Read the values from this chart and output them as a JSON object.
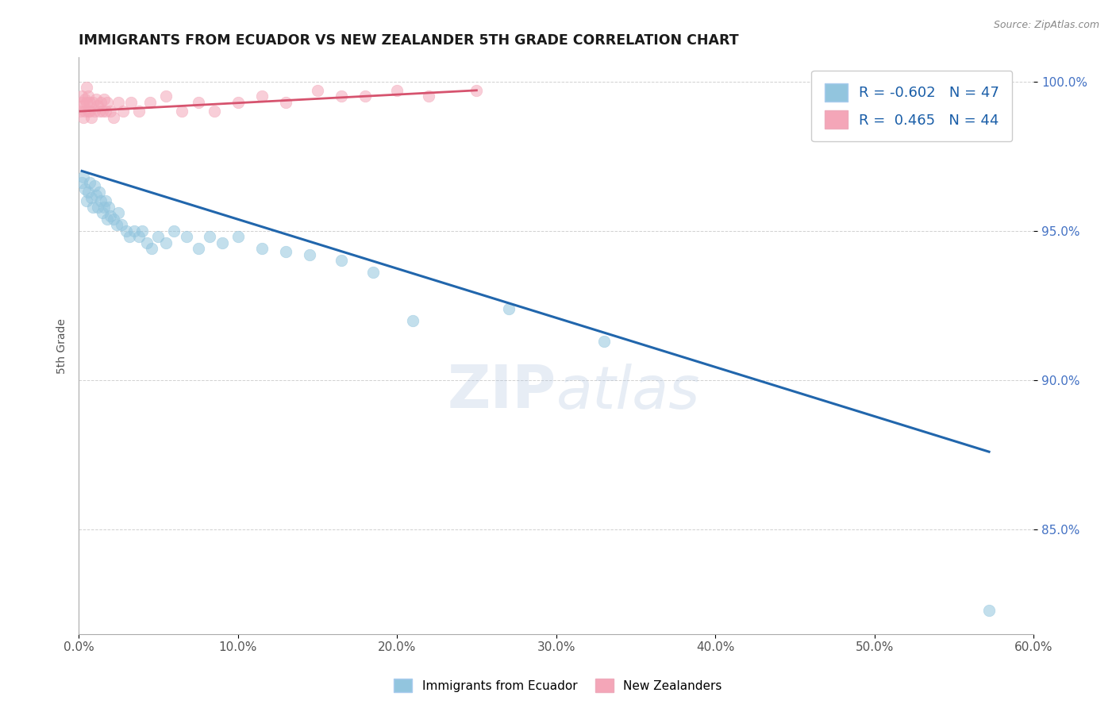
{
  "title": "IMMIGRANTS FROM ECUADOR VS NEW ZEALANDER 5TH GRADE CORRELATION CHART",
  "source": "Source: ZipAtlas.com",
  "ylabel": "5th Grade",
  "xlabel_legend1": "Immigrants from Ecuador",
  "xlabel_legend2": "New Zealanders",
  "r1": -0.602,
  "n1": 47,
  "r2": 0.465,
  "n2": 44,
  "color_blue": "#92c5de",
  "color_pink": "#f4a6b8",
  "color_blue_line": "#2166ac",
  "color_pink_line": "#d6536e",
  "xlim": [
    0.0,
    0.6
  ],
  "ylim": [
    0.815,
    1.008
  ],
  "xticks": [
    0.0,
    0.1,
    0.2,
    0.3,
    0.4,
    0.5,
    0.6
  ],
  "yticks": [
    0.85,
    0.9,
    0.95,
    1.0
  ],
  "ytick_labels": [
    "85.0%",
    "90.0%",
    "95.0%",
    "100.0%"
  ],
  "xtick_labels": [
    "0.0%",
    "10.0%",
    "20.0%",
    "30.0%",
    "40.0%",
    "50.0%",
    "60.0%"
  ],
  "blue_x": [
    0.002,
    0.003,
    0.004,
    0.005,
    0.006,
    0.007,
    0.008,
    0.009,
    0.01,
    0.011,
    0.012,
    0.013,
    0.014,
    0.015,
    0.016,
    0.017,
    0.018,
    0.019,
    0.02,
    0.022,
    0.024,
    0.025,
    0.027,
    0.03,
    0.032,
    0.035,
    0.038,
    0.04,
    0.043,
    0.046,
    0.05,
    0.055,
    0.06,
    0.068,
    0.075,
    0.082,
    0.09,
    0.1,
    0.115,
    0.13,
    0.145,
    0.165,
    0.185,
    0.21,
    0.27,
    0.33,
    0.572
  ],
  "blue_y": [
    0.966,
    0.968,
    0.964,
    0.96,
    0.963,
    0.966,
    0.961,
    0.958,
    0.965,
    0.962,
    0.958,
    0.963,
    0.96,
    0.956,
    0.958,
    0.96,
    0.954,
    0.958,
    0.955,
    0.954,
    0.952,
    0.956,
    0.952,
    0.95,
    0.948,
    0.95,
    0.948,
    0.95,
    0.946,
    0.944,
    0.948,
    0.946,
    0.95,
    0.948,
    0.944,
    0.948,
    0.946,
    0.948,
    0.944,
    0.943,
    0.942,
    0.94,
    0.936,
    0.92,
    0.924,
    0.913,
    0.823
  ],
  "blue_line_x": [
    0.002,
    0.572
  ],
  "blue_line_y": [
    0.97,
    0.876
  ],
  "pink_x": [
    0.001,
    0.002,
    0.002,
    0.003,
    0.003,
    0.004,
    0.004,
    0.005,
    0.005,
    0.006,
    0.006,
    0.007,
    0.007,
    0.008,
    0.009,
    0.01,
    0.011,
    0.012,
    0.013,
    0.014,
    0.015,
    0.016,
    0.017,
    0.018,
    0.02,
    0.022,
    0.025,
    0.028,
    0.033,
    0.038,
    0.045,
    0.055,
    0.065,
    0.075,
    0.085,
    0.1,
    0.115,
    0.13,
    0.15,
    0.165,
    0.18,
    0.2,
    0.22,
    0.25
  ],
  "pink_y": [
    0.99,
    0.993,
    0.995,
    0.988,
    0.992,
    0.99,
    0.994,
    0.993,
    0.998,
    0.99,
    0.995,
    0.993,
    0.99,
    0.988,
    0.993,
    0.99,
    0.994,
    0.992,
    0.99,
    0.993,
    0.99,
    0.994,
    0.99,
    0.993,
    0.99,
    0.988,
    0.993,
    0.99,
    0.993,
    0.99,
    0.993,
    0.995,
    0.99,
    0.993,
    0.99,
    0.993,
    0.995,
    0.993,
    0.997,
    0.995,
    0.995,
    0.997,
    0.995,
    0.997
  ],
  "pink_line_x": [
    0.001,
    0.25
  ],
  "pink_line_y": [
    0.99,
    0.997
  ]
}
